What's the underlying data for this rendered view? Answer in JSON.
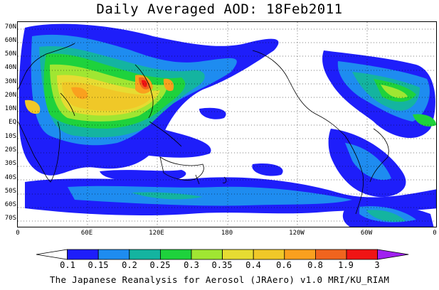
{
  "title": "Daily Averaged AOD: 18Feb2011",
  "credit": "The Japanese Reanalysis for Aerosol (JRAero) v1.0 MRI/KU_RIAM",
  "lat_labels": [
    "70N",
    "60N",
    "50N",
    "40N",
    "30N",
    "20N",
    "10N",
    "EQ",
    "10S",
    "20S",
    "30S",
    "40S",
    "50S",
    "60S",
    "70S"
  ],
  "lon_labels": [
    "0",
    "60E",
    "120E",
    "180",
    "120W",
    "60W",
    "0"
  ],
  "colorbar": {
    "levels": [
      "0.1",
      "0.15",
      "0.2",
      "0.25",
      "0.3",
      "0.35",
      "0.4",
      "0.6",
      "0.8",
      "1.9",
      "3"
    ],
    "colors": [
      "#ffffff",
      "#1e1efa",
      "#1e8cf0",
      "#14b4a0",
      "#1ed23c",
      "#a0e632",
      "#e6dc32",
      "#f0c828",
      "#faa01e",
      "#f0641e",
      "#f01414",
      "#a020f0"
    ]
  },
  "map": {
    "projection": "equirectangular",
    "lon_range": [
      0,
      360
    ],
    "lat_range": [
      -75,
      75
    ],
    "land_outline_color": "#000000",
    "grid": "dotted"
  }
}
